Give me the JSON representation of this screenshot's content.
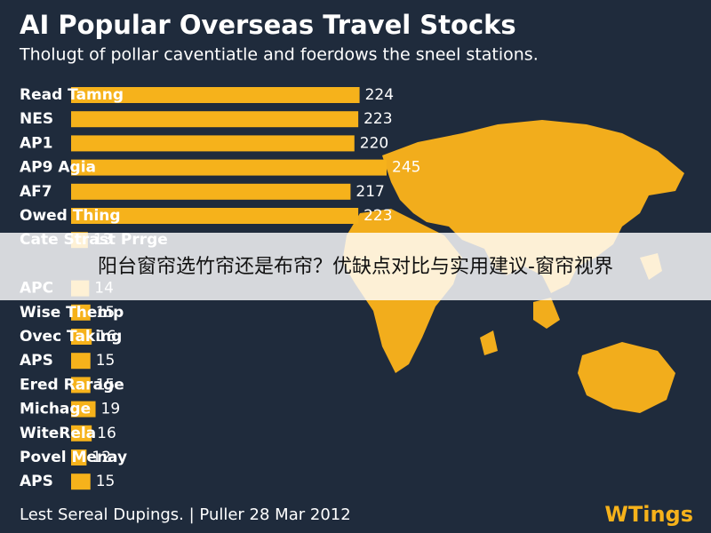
{
  "chart_data": {
    "type": "bar",
    "orientation": "horizontal",
    "title": "AI Popular Overseas Travel Stocks",
    "subtitle": "Tholugt of pollar caventiatle and foerdows the sneel stations.",
    "categories": [
      "Read Tamng",
      "NES",
      "AP1",
      "AP9 Agia",
      "AF7",
      "Owed Thing",
      "Cate Strast Prrge",
      "APC",
      "Wise Themp",
      "Ovec Taking",
      "APS",
      "Ered Rarage",
      "Michage",
      "WiteRela",
      "Povel Menay",
      "APS"
    ],
    "values": [
      224,
      223,
      220,
      245,
      217,
      223,
      13,
      14,
      15,
      16,
      15,
      15,
      19,
      16,
      12,
      15
    ],
    "color": "#f6b21b",
    "footnote": "Lest Sereal Dupings. | Puller 28 Mar 2012",
    "brand": "WTings"
  },
  "overlay": {
    "text": "阳台窗帘选竹帘还是布帘？优缺点对比与实用建议-窗帘视界"
  }
}
